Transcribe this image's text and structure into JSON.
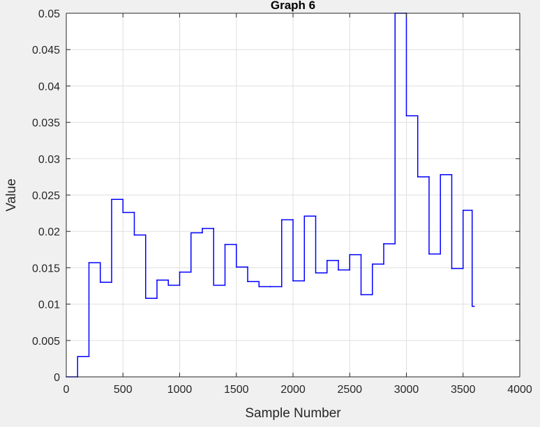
{
  "chart_data": {
    "type": "line",
    "title": "Graph  6",
    "xlabel": "Sample Number",
    "ylabel": "Value",
    "xlim": [
      0,
      4000
    ],
    "ylim": [
      0,
      0.05
    ],
    "grid": true,
    "line_style": "stairs",
    "colors": {
      "series": "#0000ff",
      "axes": "#262626",
      "grid": "#dfdfdf",
      "plot_bg": "#ffffff",
      "figure_bg": "#f0f0f0"
    },
    "xticks": [
      0,
      500,
      1000,
      1500,
      2000,
      2500,
      3000,
      3500,
      4000
    ],
    "xtick_labels": [
      "0",
      "500",
      "1000",
      "1500",
      "2000",
      "2500",
      "3000",
      "3500",
      "4000"
    ],
    "yticks": [
      0,
      0.005,
      0.01,
      0.015,
      0.02,
      0.025,
      0.03,
      0.035,
      0.04,
      0.045,
      0.05
    ],
    "ytick_labels": [
      "0",
      "0.005",
      "0.01",
      "0.015",
      "0.02",
      "0.025",
      "0.03",
      "0.035",
      "0.04",
      "0.045",
      "0.05"
    ],
    "series": [
      {
        "x": [
          0,
          100,
          200,
          300,
          400,
          500,
          600,
          700,
          800,
          900,
          1000,
          1100,
          1200,
          1300,
          1400,
          1500,
          1600,
          1700,
          1800,
          1900,
          2000,
          2100,
          2200,
          2300,
          2400,
          2500,
          2600,
          2700,
          2800,
          2900,
          3000,
          3100,
          3200,
          3300,
          3400,
          3500,
          3580
        ],
        "y": [
          0,
          0.0028,
          0.0157,
          0.013,
          0.0244,
          0.0226,
          0.0195,
          0.0108,
          0.0133,
          0.0126,
          0.0144,
          0.0198,
          0.0204,
          0.0126,
          0.0182,
          0.0151,
          0.0131,
          0.0124,
          0.0124,
          0.0216,
          0.0132,
          0.0221,
          0.0143,
          0.016,
          0.0147,
          0.0168,
          0.0113,
          0.0155,
          0.0183,
          0.05,
          0.0359,
          0.0275,
          0.0169,
          0.0278,
          0.0149,
          0.0229,
          0.0097
        ]
      }
    ]
  }
}
